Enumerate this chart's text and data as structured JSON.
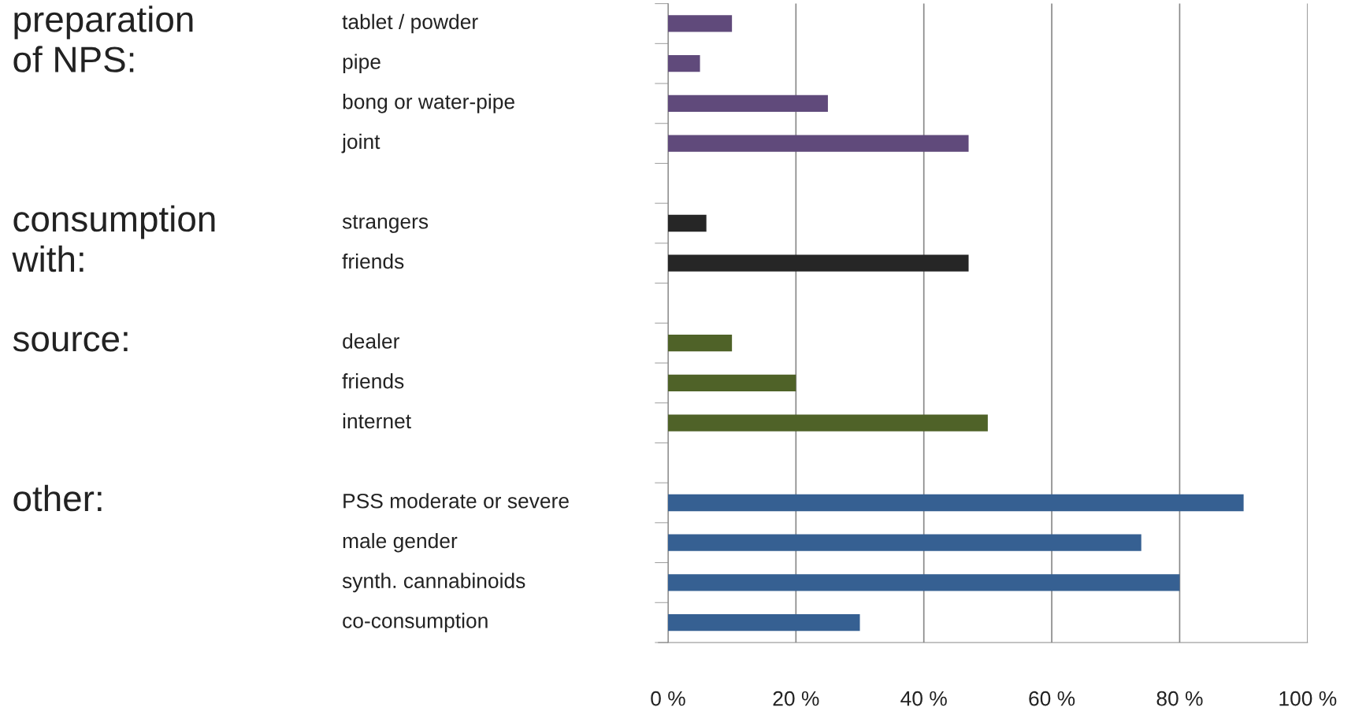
{
  "chart_data": {
    "type": "bar",
    "orientation": "horizontal",
    "categories": [
      "tablet / powder",
      "pipe",
      "bong or water-pipe",
      "joint",
      null,
      "strangers",
      "friends",
      null,
      "dealer",
      "friends",
      "internet",
      null,
      "PSS moderate or severe",
      "male gender",
      "synth. cannabinoids",
      "co-consumption"
    ],
    "values": [
      10,
      5,
      25,
      47,
      null,
      6,
      47,
      null,
      10,
      20,
      50,
      null,
      90,
      74,
      80,
      30
    ],
    "colors": [
      "#604a7b",
      "#604a7b",
      "#604a7b",
      "#604a7b",
      "#604a7b",
      "#262626",
      "#262626",
      "#262626",
      "#4f6228",
      "#4f6228",
      "#4f6228",
      "#4f6228",
      "#366092",
      "#366092",
      "#366092",
      "#366092"
    ],
    "xlim": [
      0,
      100
    ],
    "xticks": [
      {
        "value": 0,
        "label": "0 %"
      },
      {
        "value": 20,
        "label": "20 %"
      },
      {
        "value": 40,
        "label": "40 %"
      },
      {
        "value": 60,
        "label": "60 %"
      },
      {
        "value": 80,
        "label": "80 %"
      },
      {
        "value": 100,
        "label": "100 %"
      }
    ],
    "grid": "x",
    "annotations": [
      "preparation\nof NPS:",
      "consumption\nwith:",
      "source:",
      "other:"
    ]
  }
}
